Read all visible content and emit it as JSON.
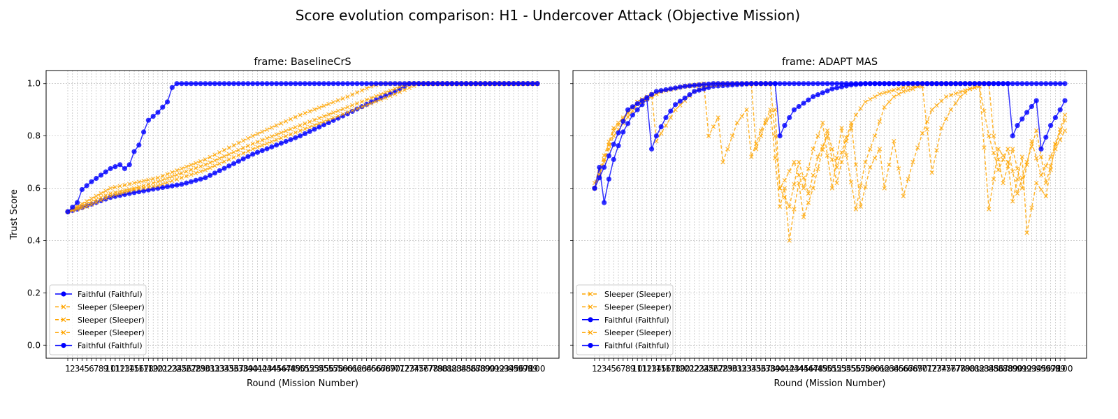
{
  "suptitle": "Score evolution comparison: H1 - Undercover Attack (Objective Mission)",
  "chart_data": [
    {
      "type": "line",
      "title": "frame: BaselineCrS",
      "xlabel": "Round (Mission Number)",
      "ylabel": "Trust Score",
      "xlim": [
        1,
        100
      ],
      "ylim": [
        -0.05,
        1.05
      ],
      "yticks": [
        0.0,
        0.2,
        0.4,
        0.6,
        0.8,
        1.0
      ],
      "grid": true,
      "legend_position": "lower-left",
      "series": [
        {
          "name": "Faithful (Faithful)",
          "role": "faithful",
          "color": "#0000ff",
          "marker": "o",
          "dash": "solid",
          "anchors": [
            [
              1,
              0.51
            ],
            [
              3,
              0.52
            ],
            [
              10,
              0.565
            ],
            [
              14,
              0.58
            ],
            [
              20,
              0.6
            ],
            [
              25,
              0.615
            ],
            [
              30,
              0.64
            ],
            [
              40,
              0.73
            ],
            [
              50,
              0.8
            ],
            [
              60,
              0.885
            ],
            [
              65,
              0.93
            ],
            [
              70,
              0.97
            ],
            [
              73,
              1.0
            ],
            [
              100,
              1.0
            ]
          ]
        },
        {
          "name": "Sleeper (Sleeper)",
          "role": "sleeper",
          "color": "#ffa500",
          "marker": "x",
          "dash": "dashed",
          "anchors": [
            [
              1,
              0.51
            ],
            [
              5,
              0.55
            ],
            [
              10,
              0.6
            ],
            [
              15,
              0.62
            ],
            [
              20,
              0.64
            ],
            [
              30,
              0.71
            ],
            [
              40,
              0.8
            ],
            [
              50,
              0.88
            ],
            [
              60,
              0.95
            ],
            [
              65,
              0.99
            ],
            [
              67,
              1.0
            ],
            [
              100,
              1.0
            ]
          ]
        },
        {
          "name": "Sleeper (Sleeper)",
          "role": "sleeper",
          "color": "#ffa500",
          "marker": "x",
          "dash": "dashed",
          "anchors": [
            [
              1,
              0.51
            ],
            [
              5,
              0.54
            ],
            [
              10,
              0.58
            ],
            [
              15,
              0.6
            ],
            [
              20,
              0.625
            ],
            [
              30,
              0.69
            ],
            [
              40,
              0.77
            ],
            [
              50,
              0.84
            ],
            [
              60,
              0.91
            ],
            [
              70,
              0.98
            ],
            [
              73,
              1.0
            ],
            [
              100,
              1.0
            ]
          ]
        },
        {
          "name": "Sleeper (Sleeper)",
          "role": "sleeper",
          "color": "#ffa500",
          "marker": "x",
          "dash": "dashed",
          "anchors": [
            [
              1,
              0.51
            ],
            [
              5,
              0.53
            ],
            [
              10,
              0.57
            ],
            [
              15,
              0.595
            ],
            [
              20,
              0.61
            ],
            [
              30,
              0.67
            ],
            [
              40,
              0.75
            ],
            [
              50,
              0.82
            ],
            [
              60,
              0.89
            ],
            [
              70,
              0.96
            ],
            [
              75,
              1.0
            ],
            [
              100,
              1.0
            ]
          ]
        },
        {
          "name": "Faithful (Faithful)",
          "role": "faithful",
          "color": "#0000ff",
          "marker": "o",
          "dash": "solid",
          "anchors": [
            [
              1,
              0.51
            ],
            [
              3,
              0.545
            ],
            [
              4,
              0.595
            ],
            [
              6,
              0.625
            ],
            [
              10,
              0.675
            ],
            [
              12,
              0.69
            ],
            [
              13,
              0.675
            ],
            [
              14,
              0.69
            ],
            [
              15,
              0.74
            ],
            [
              16,
              0.765
            ],
            [
              17,
              0.815
            ],
            [
              18,
              0.86
            ],
            [
              20,
              0.89
            ],
            [
              22,
              0.93
            ],
            [
              23,
              0.985
            ],
            [
              24,
              1.0
            ],
            [
              100,
              1.0
            ]
          ]
        }
      ]
    },
    {
      "type": "line",
      "title": "frame: ADAPT MAS",
      "xlabel": "Round (Mission Number)",
      "ylabel": "",
      "xlim": [
        1,
        100
      ],
      "ylim": [
        -0.05,
        1.05
      ],
      "yticks": [
        0.0,
        0.2,
        0.4,
        0.6,
        0.8,
        1.0
      ],
      "grid": true,
      "legend_position": "lower-left",
      "series": [
        {
          "name": "Sleeper (Sleeper)",
          "role": "sleeper",
          "color": "#ffa500",
          "marker": "x",
          "dash": "dashed",
          "anchors": [
            [
              1,
              0.6
            ],
            [
              5,
              0.82
            ],
            [
              10,
              0.93
            ],
            [
              15,
              0.97
            ],
            [
              20,
              0.99
            ],
            [
              24,
              1.0
            ],
            [
              25,
              0.8
            ],
            [
              27,
              0.87
            ],
            [
              28,
              0.7
            ],
            [
              31,
              0.85
            ],
            [
              33,
              0.9
            ],
            [
              34,
              0.72
            ],
            [
              36,
              0.82
            ],
            [
              38,
              0.9
            ],
            [
              40,
              0.53
            ],
            [
              41,
              0.6
            ],
            [
              42,
              0.4
            ],
            [
              43,
              0.52
            ],
            [
              44,
              0.62
            ],
            [
              45,
              0.49
            ],
            [
              47,
              0.6
            ],
            [
              50,
              0.82
            ],
            [
              52,
              0.68
            ],
            [
              55,
              0.85
            ],
            [
              57,
              0.53
            ],
            [
              59,
              0.68
            ],
            [
              61,
              0.75
            ],
            [
              62,
              0.6
            ],
            [
              64,
              0.78
            ],
            [
              66,
              0.57
            ],
            [
              68,
              0.7
            ],
            [
              70,
              0.81
            ],
            [
              72,
              0.9
            ],
            [
              75,
              0.95
            ],
            [
              80,
              0.98
            ],
            [
              82,
              0.99
            ],
            [
              84,
              0.52
            ],
            [
              86,
              0.75
            ],
            [
              88,
              0.7
            ],
            [
              89,
              0.55
            ],
            [
              91,
              0.72
            ],
            [
              92,
              0.43
            ],
            [
              94,
              0.62
            ],
            [
              96,
              0.57
            ],
            [
              98,
              0.77
            ],
            [
              100,
              0.88
            ]
          ]
        },
        {
          "name": "Sleeper (Sleeper)",
          "role": "sleeper",
          "color": "#ffa500",
          "marker": "x",
          "dash": "dashed",
          "anchors": [
            [
              1,
              0.62
            ],
            [
              5,
              0.83
            ],
            [
              10,
              0.93
            ],
            [
              13,
              0.96
            ],
            [
              14,
              0.78
            ],
            [
              18,
              0.9
            ],
            [
              22,
              0.97
            ],
            [
              26,
              1.0
            ],
            [
              34,
              1.0
            ],
            [
              35,
              0.75
            ],
            [
              37,
              0.85
            ],
            [
              39,
              0.9
            ],
            [
              40,
              0.6
            ],
            [
              41,
              0.63
            ],
            [
              43,
              0.7
            ],
            [
              45,
              0.6
            ],
            [
              47,
              0.75
            ],
            [
              49,
              0.85
            ],
            [
              51,
              0.6
            ],
            [
              53,
              0.83
            ],
            [
              56,
              0.52
            ],
            [
              58,
              0.7
            ],
            [
              60,
              0.8
            ],
            [
              62,
              0.91
            ],
            [
              64,
              0.95
            ],
            [
              66,
              0.97
            ],
            [
              68,
              0.98
            ],
            [
              70,
              1.0
            ],
            [
              84,
              1.0
            ],
            [
              85,
              0.8
            ],
            [
              87,
              0.62
            ],
            [
              89,
              0.75
            ],
            [
              91,
              0.6
            ],
            [
              93,
              0.78
            ],
            [
              95,
              0.65
            ],
            [
              97,
              0.72
            ],
            [
              100,
              0.86
            ]
          ]
        },
        {
          "name": "Faithful (Faithful)",
          "role": "faithful",
          "color": "#0000ff",
          "marker": "o",
          "dash": "solid",
          "anchors": [
            [
              1,
              0.6
            ],
            [
              2,
              0.68
            ],
            [
              3,
              0.545
            ],
            [
              4,
              0.635
            ],
            [
              5,
              0.71
            ],
            [
              7,
              0.815
            ],
            [
              9,
              0.88
            ],
            [
              11,
              0.92
            ],
            [
              12,
              0.94
            ],
            [
              13,
              0.75
            ],
            [
              14,
              0.8
            ],
            [
              16,
              0.87
            ],
            [
              18,
              0.92
            ],
            [
              22,
              0.97
            ],
            [
              26,
              0.99
            ],
            [
              30,
              0.995
            ],
            [
              34,
              1.0
            ],
            [
              100,
              1.0
            ]
          ]
        },
        {
          "name": "Sleeper (Sleeper)",
          "role": "sleeper",
          "color": "#ffa500",
          "marker": "x",
          "dash": "dashed",
          "anchors": [
            [
              1,
              0.6
            ],
            [
              5,
              0.8
            ],
            [
              10,
              0.92
            ],
            [
              15,
              0.97
            ],
            [
              20,
              0.99
            ],
            [
              30,
              1.0
            ],
            [
              38,
              1.0
            ],
            [
              40,
              0.6
            ],
            [
              42,
              0.53
            ],
            [
              44,
              0.7
            ],
            [
              46,
              0.58
            ],
            [
              48,
              0.72
            ],
            [
              50,
              0.8
            ],
            [
              52,
              0.62
            ],
            [
              54,
              0.78
            ],
            [
              56,
              0.88
            ],
            [
              58,
              0.93
            ],
            [
              61,
              0.96
            ],
            [
              63,
              0.97
            ],
            [
              65,
              0.98
            ],
            [
              67,
              0.99
            ],
            [
              70,
              0.99
            ],
            [
              72,
              0.66
            ],
            [
              74,
              0.83
            ],
            [
              76,
              0.9
            ],
            [
              78,
              0.95
            ],
            [
              80,
              0.98
            ],
            [
              82,
              0.99
            ],
            [
              84,
              0.8
            ],
            [
              86,
              0.67
            ],
            [
              88,
              0.75
            ],
            [
              90,
              0.58
            ],
            [
              92,
              0.7
            ],
            [
              94,
              0.82
            ],
            [
              96,
              0.62
            ],
            [
              98,
              0.75
            ],
            [
              100,
              0.82
            ]
          ]
        },
        {
          "name": "Faithful (Faithful)",
          "role": "faithful",
          "color": "#0000ff",
          "marker": "o",
          "dash": "solid",
          "anchors": [
            [
              1,
              0.6
            ],
            [
              3,
              0.68
            ],
            [
              8,
              0.9
            ],
            [
              14,
              0.97
            ],
            [
              20,
              0.99
            ],
            [
              26,
              1.0
            ],
            [
              39,
              1.0
            ],
            [
              40,
              0.8
            ],
            [
              41,
              0.84
            ],
            [
              43,
              0.9
            ],
            [
              47,
              0.95
            ],
            [
              51,
              0.98
            ],
            [
              55,
              0.995
            ],
            [
              58,
              1.0
            ],
            [
              88,
              1.0
            ],
            [
              89,
              0.8
            ],
            [
              90,
              0.84
            ],
            [
              92,
              0.89
            ],
            [
              94,
              0.935
            ],
            [
              95,
              0.75
            ],
            [
              96,
              0.795
            ],
            [
              97,
              0.84
            ],
            [
              99,
              0.9
            ],
            [
              100,
              0.935
            ]
          ]
        }
      ]
    }
  ]
}
